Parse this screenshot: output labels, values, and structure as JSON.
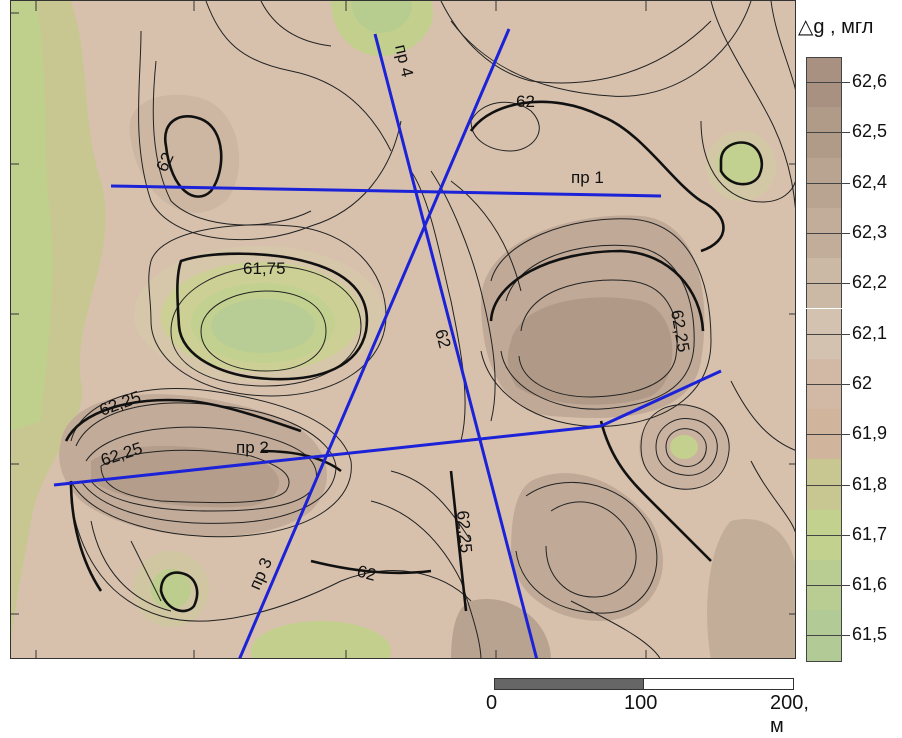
{
  "legend": {
    "title": "△g , мгл",
    "values": [
      "62,6",
      "62,5",
      "62,4",
      "62,3",
      "62,2",
      "62,1",
      "62",
      "61,9",
      "61,8",
      "61,7",
      "61,6",
      "61,5"
    ],
    "colors": [
      "#a89180",
      "#b09a88",
      "#b8a491",
      "#c1ad9a",
      "#cbb8a5",
      "#d4c2b0",
      "#d2b9a6",
      "#d0b49c",
      "#c8c792",
      "#c2d18e",
      "#b9cd92",
      "#b2cb96"
    ]
  },
  "scalebar": {
    "tick_0": "0",
    "tick_100": "100",
    "tick_200": "200, м"
  },
  "profiles": [
    {
      "label": "пр 1"
    },
    {
      "label": "пр 2"
    },
    {
      "label": "пр 3"
    },
    {
      "label": "пр 4"
    }
  ],
  "contour_labels": [
    {
      "text": "62"
    },
    {
      "text": "62"
    },
    {
      "text": "61,75"
    },
    {
      "text": "62,25"
    },
    {
      "text": "62"
    },
    {
      "text": "62"
    },
    {
      "text": "62,25"
    },
    {
      "text": "62"
    },
    {
      "text": "62,25"
    }
  ],
  "colors": {
    "profile_line": "#1c22d8",
    "background": "#d2b9a6",
    "low_green": "#c2d18e",
    "high_brown": "#b39d89"
  }
}
